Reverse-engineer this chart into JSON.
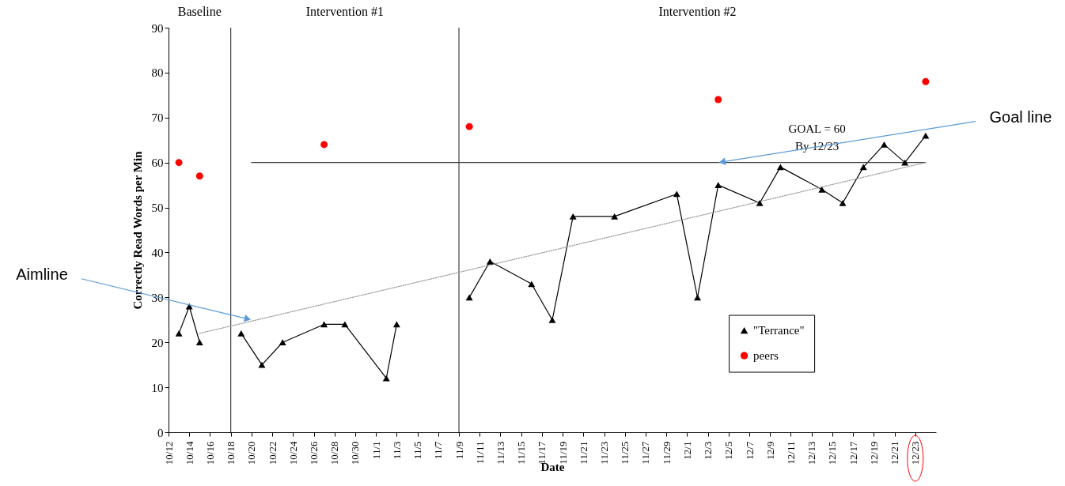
{
  "chart_data": {
    "type": "line",
    "xlabel": "Date",
    "ylabel": "Correctly Read Words per Min",
    "xlim": [
      "--10-12",
      "--12-25"
    ],
    "ylim": [
      0,
      90
    ],
    "yticks": [
      0,
      10,
      20,
      30,
      40,
      50,
      60,
      70,
      80,
      90
    ],
    "xticks": [
      {
        "value": "--10-12",
        "label": "10/12"
      },
      {
        "value": "--10-14",
        "label": "10/14"
      },
      {
        "value": "--10-16",
        "label": "10/16"
      },
      {
        "value": "--10-18",
        "label": "10/18"
      },
      {
        "value": "--10-20",
        "label": "10/20"
      },
      {
        "value": "--10-22",
        "label": "10/22"
      },
      {
        "value": "--10-24",
        "label": "10/24"
      },
      {
        "value": "--10-26",
        "label": "10/26"
      },
      {
        "value": "--10-28",
        "label": "10/28"
      },
      {
        "value": "--10-30",
        "label": "10/30"
      },
      {
        "value": "--11-01",
        "label": "11/1"
      },
      {
        "value": "--11-03",
        "label": "11/3"
      },
      {
        "value": "--11-05",
        "label": "11/5"
      },
      {
        "value": "--11-07",
        "label": "11/7"
      },
      {
        "value": "--11-09",
        "label": "11/9"
      },
      {
        "value": "--11-11",
        "label": "11/11"
      },
      {
        "value": "--11-13",
        "label": "11/13"
      },
      {
        "value": "--11-15",
        "label": "11/15"
      },
      {
        "value": "--11-17",
        "label": "11/17"
      },
      {
        "value": "--11-19",
        "label": "11/19"
      },
      {
        "value": "--11-21",
        "label": "11/21"
      },
      {
        "value": "--11-23",
        "label": "11/23"
      },
      {
        "value": "--11-25",
        "label": "11/25"
      },
      {
        "value": "--11-27",
        "label": "11/27"
      },
      {
        "value": "--11-29",
        "label": "11/29"
      },
      {
        "value": "--12-01",
        "label": "12/1"
      },
      {
        "value": "--12-03",
        "label": "12/3"
      },
      {
        "value": "--12-05",
        "label": "12/5"
      },
      {
        "value": "--12-07",
        "label": "12/7"
      },
      {
        "value": "--12-09",
        "label": "12/9"
      },
      {
        "value": "--12-11",
        "label": "12/11"
      },
      {
        "value": "--12-13",
        "label": "12/13"
      },
      {
        "value": "--12-15",
        "label": "12/15"
      },
      {
        "value": "--12-17",
        "label": "12/17"
      },
      {
        "value": "--12-19",
        "label": "12/19"
      },
      {
        "value": "--12-21",
        "label": "12/21"
      },
      {
        "value": "--12-23",
        "label": "12/23"
      }
    ],
    "grid": false,
    "legend": "right",
    "series": [
      {
        "name": "\"Terrance\"",
        "type": "line",
        "color": "#000000",
        "marker": "triangle",
        "x": [
          "--10-13",
          "--10-14",
          "--10-15",
          null,
          "--10-19",
          "--10-21",
          "--10-23",
          "--10-27",
          "--10-29",
          "--11-02",
          "--11-03",
          null,
          "--11-10",
          "--11-12",
          "--11-16",
          "--11-18",
          "--11-20",
          "--11-24",
          "--11-30",
          "--12-02",
          "--12-04",
          "--12-08",
          "--12-10",
          "--12-14",
          "--12-16",
          "--12-18",
          "--12-20",
          "--12-22",
          "--12-24"
        ],
        "values": [
          22,
          28,
          20,
          null,
          22,
          15,
          20,
          24,
          24,
          12,
          24,
          null,
          30,
          38,
          33,
          25,
          48,
          48,
          53,
          30,
          55,
          51,
          59,
          54,
          51,
          59,
          64,
          60,
          66
        ]
      },
      {
        "name": "peers",
        "type": "scatter",
        "color": "#ff0000",
        "marker": "circle",
        "x": [
          "--10-13",
          "--10-15",
          "--10-27",
          "--11-10",
          "--12-04",
          "--12-24"
        ],
        "values": [
          60,
          57,
          64,
          68,
          74,
          78
        ]
      },
      {
        "type": "line",
        "color": "#404040",
        "marker": "none",
        "x": [
          "--10-20",
          "--12-24"
        ],
        "values": [
          60,
          60
        ]
      },
      {
        "type": "line",
        "color": "#999999",
        "marker": "none",
        "line_style": "dotted",
        "x": [
          "--10-15",
          "--12-24"
        ],
        "values": [
          22,
          60
        ]
      }
    ],
    "ref_lines": [
      {
        "axis": "x",
        "value": "--10-18",
        "color": "#404040"
      },
      {
        "axis": "x",
        "value": "--11-09",
        "color": "#404040"
      }
    ],
    "annotations": [
      "Baseline",
      "Intervention #1",
      "Intervention #2",
      "GOAL = 60\nBy 12/23",
      {
        "text": "Goal line",
        "x": "--12-04",
        "y": 60
      },
      {
        "text": "Aimline",
        "x": "--10-20",
        "y": 25
      }
    ]
  }
}
